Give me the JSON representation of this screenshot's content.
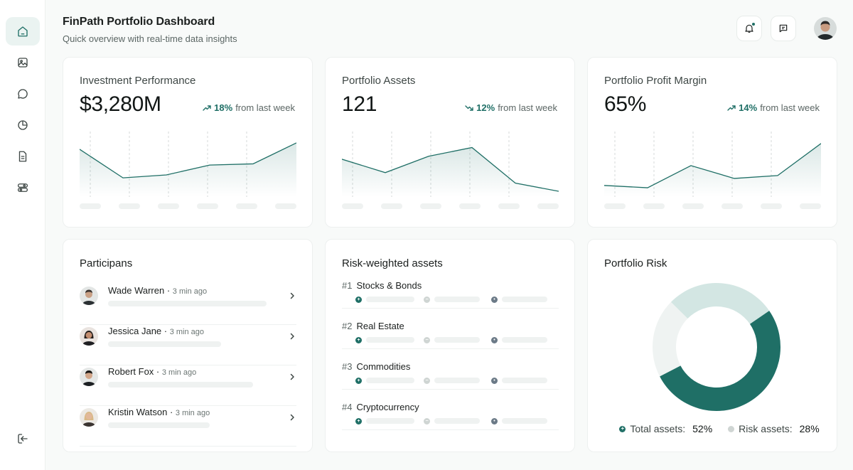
{
  "header": {
    "title": "FinPath Portfolio Dashboard",
    "subtitle": "Quick overview with real-time data insights"
  },
  "sidebar": {
    "items": [
      {
        "icon": "home-icon",
        "active": true
      },
      {
        "icon": "image-icon",
        "active": false
      },
      {
        "icon": "chat-icon",
        "active": false
      },
      {
        "icon": "pie-chart-icon",
        "active": false
      },
      {
        "icon": "document-icon",
        "active": false
      },
      {
        "icon": "toggles-icon",
        "active": false
      }
    ],
    "logout_icon": "logout-icon"
  },
  "top_actions": {
    "notification_icon": "bell-icon",
    "message_icon": "message-icon"
  },
  "colors": {
    "accent": "#1f6f66",
    "accent_light": "#d3e6e3",
    "muted": "#eff2f1"
  },
  "kpis": [
    {
      "label": "Investment Performance",
      "value": "$3,280M",
      "trend_pct": "18%",
      "trend_text": "from last week",
      "trend_dir": "up",
      "spark": [
        72,
        23,
        28,
        45,
        47,
        83
      ]
    },
    {
      "label": "Portfolio Assets",
      "value": "121",
      "trend_pct": "12%",
      "trend_text": "from last week",
      "trend_dir": "down",
      "spark": [
        55,
        32,
        60,
        75,
        14,
        0
      ]
    },
    {
      "label": "Portfolio Profit Margin",
      "value": "65%",
      "trend_pct": "14%",
      "trend_text": "from last week",
      "trend_dir": "up",
      "spark": [
        10,
        6,
        44,
        22,
        27,
        82
      ]
    }
  ],
  "participants": {
    "title": "Participans",
    "rows": [
      {
        "name": "Wade Warren",
        "time": "3 min ago",
        "bar_fraction": 0.73
      },
      {
        "name": "Jessica Jane",
        "time": "3 min ago",
        "bar_fraction": 0.52
      },
      {
        "name": "Robert Fox",
        "time": "3 min ago",
        "bar_fraction": 0.67
      },
      {
        "name": "Kristin Watson",
        "time": "3 min ago",
        "bar_fraction": 0.47
      }
    ]
  },
  "risk_weighted": {
    "title": "Risk-weighted assets",
    "rows": [
      {
        "num": "#1",
        "label": "Stocks & Bonds"
      },
      {
        "num": "#2",
        "label": "Real Estate"
      },
      {
        "num": "#3",
        "label": "Commodities"
      },
      {
        "num": "#4",
        "label": "Cryptocurrency"
      }
    ]
  },
  "portfolio_risk": {
    "title": "Portfolio Risk",
    "legend": [
      {
        "label": "Total assets:",
        "value": "52%"
      },
      {
        "label": "Risk assets:",
        "value": "28%"
      }
    ]
  },
  "chart_data": {
    "type": "pie",
    "title": "Portfolio Risk",
    "series": [
      {
        "name": "Total assets",
        "value": 52
      },
      {
        "name": "Risk assets",
        "value": 28
      }
    ],
    "remainder": 20
  }
}
